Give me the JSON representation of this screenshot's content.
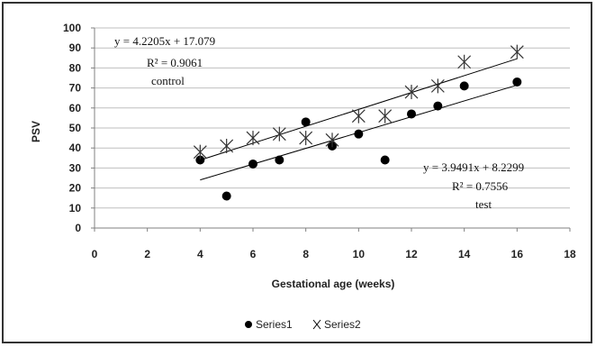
{
  "chart_data": {
    "type": "scatter",
    "xlabel": "Gestational age (weeks)",
    "ylabel": "PSV",
    "xlim": [
      0,
      18
    ],
    "ylim": [
      0,
      100
    ],
    "xticks": [
      0,
      2,
      4,
      6,
      8,
      10,
      12,
      14,
      16,
      18
    ],
    "yticks": [
      0,
      10,
      20,
      30,
      40,
      50,
      60,
      70,
      80,
      90,
      100
    ],
    "grid": "horizontal",
    "legend_position": "bottom",
    "series": [
      {
        "name": "Series1",
        "marker": "circle",
        "points": [
          [
            4,
            34
          ],
          [
            5,
            16
          ],
          [
            6,
            32
          ],
          [
            7,
            34
          ],
          [
            8,
            53
          ],
          [
            9,
            41
          ],
          [
            10,
            47
          ],
          [
            11,
            34
          ],
          [
            12,
            57
          ],
          [
            13,
            61
          ],
          [
            14,
            71
          ],
          [
            16,
            73
          ]
        ]
      },
      {
        "name": "Series2",
        "marker": "star",
        "points": [
          [
            4,
            38
          ],
          [
            5,
            41
          ],
          [
            6,
            45
          ],
          [
            7,
            47
          ],
          [
            8,
            45
          ],
          [
            9,
            44
          ],
          [
            10,
            56
          ],
          [
            11,
            56
          ],
          [
            12,
            68
          ],
          [
            13,
            71
          ],
          [
            14,
            83
          ],
          [
            16,
            88
          ]
        ]
      }
    ],
    "trendlines": [
      {
        "slope": 4.2205,
        "intercept": 17.079,
        "x_range": [
          4,
          16
        ]
      },
      {
        "slope": 3.9491,
        "intercept": 8.2299,
        "x_range": [
          4,
          16
        ]
      }
    ],
    "annotations": {
      "control_equation": "y = 4.2205x + 17.079",
      "control_r2": "R² = 0.9061",
      "control_label": "control",
      "test_equation": "y = 3.9491x + 8.2299",
      "test_r2": "R² = 0.7556",
      "test_label": "test"
    }
  },
  "colors": {
    "gridline": "#bfbfbf",
    "axis": "#808080",
    "marker": "#000000",
    "trendline": "#000000"
  }
}
